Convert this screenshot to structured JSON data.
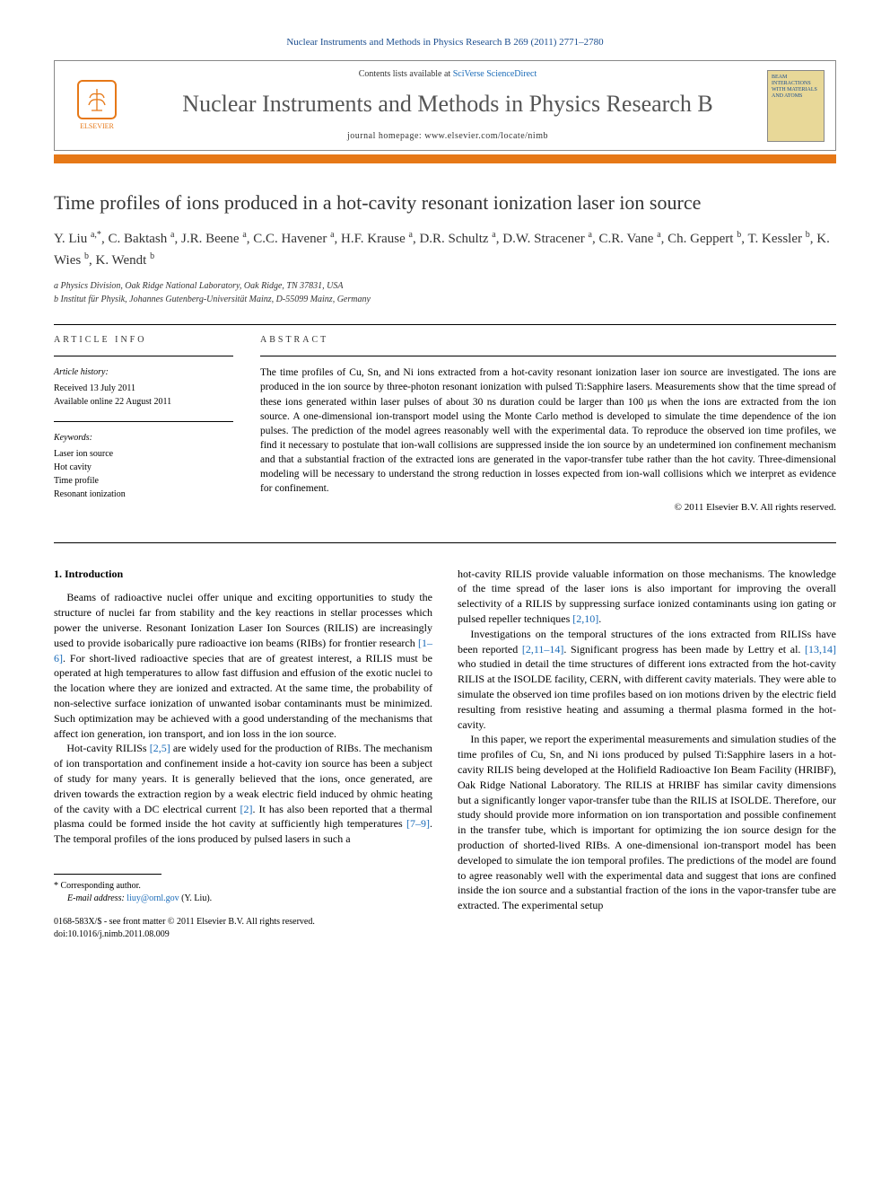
{
  "journal_ref": "Nuclear Instruments and Methods in Physics Research B 269 (2011) 2771–2780",
  "header": {
    "publisher_name": "ELSEVIER",
    "contents_prefix": "Contents lists available at ",
    "contents_link": "SciVerse ScienceDirect",
    "journal_title": "Nuclear Instruments and Methods in Physics Research B",
    "homepage_prefix": "journal homepage: ",
    "homepage_url": "www.elsevier.com/locate/nimb",
    "cover_text": "BEAM INTERACTIONS WITH MATERIALS AND ATOMS"
  },
  "article": {
    "title": "Time profiles of ions produced in a hot-cavity resonant ionization laser ion source",
    "authors_html": "Y. Liu <sup>a,*</sup>, C. Baktash <sup>a</sup>, J.R. Beene <sup>a</sup>, C.C. Havener <sup>a</sup>, H.F. Krause <sup>a</sup>, D.R. Schultz <sup>a</sup>, D.W. Stracener <sup>a</sup>, C.R. Vane <sup>a</sup>, Ch. Geppert <sup>b</sup>, T. Kessler <sup>b</sup>, K. Wies <sup>b</sup>, K. Wendt <sup>b</sup>",
    "affiliations": [
      "a Physics Division, Oak Ridge National Laboratory, Oak Ridge, TN 37831, USA",
      "b Institut für Physik, Johannes Gutenberg-Universität Mainz, D-55099 Mainz, Germany"
    ]
  },
  "info": {
    "heading": "ARTICLE INFO",
    "history_label": "Article history:",
    "received": "Received 13 July 2011",
    "online": "Available online 22 August 2011",
    "keywords_label": "Keywords:",
    "keywords": [
      "Laser ion source",
      "Hot cavity",
      "Time profile",
      "Resonant ionization"
    ]
  },
  "abstract": {
    "heading": "ABSTRACT",
    "text": "The time profiles of Cu, Sn, and Ni ions extracted from a hot-cavity resonant ionization laser ion source are investigated. The ions are produced in the ion source by three-photon resonant ionization with pulsed Ti:Sapphire lasers. Measurements show that the time spread of these ions generated within laser pulses of about 30 ns duration could be larger than 100 μs when the ions are extracted from the ion source. A one-dimensional ion-transport model using the Monte Carlo method is developed to simulate the time dependence of the ion pulses. The prediction of the model agrees reasonably well with the experimental data. To reproduce the observed ion time profiles, we find it necessary to postulate that ion-wall collisions are suppressed inside the ion source by an undetermined ion confinement mechanism and that a substantial fraction of the extracted ions are generated in the vapor-transfer tube rather than the hot cavity. Three-dimensional modeling will be necessary to understand the strong reduction in losses expected from ion-wall collisions which we interpret as evidence for confinement.",
    "copyright": "© 2011 Elsevier B.V. All rights reserved."
  },
  "body": {
    "section1_heading": "1. Introduction",
    "p1": "Beams of radioactive nuclei offer unique and exciting opportunities to study the structure of nuclei far from stability and the key reactions in stellar processes which power the universe. Resonant Ionization Laser Ion Sources (RILIS) are increasingly used to provide isobarically pure radioactive ion beams (RIBs) for frontier research [1–6]. For short-lived radioactive species that are of greatest interest, a RILIS must be operated at high temperatures to allow fast diffusion and effusion of the exotic nuclei to the location where they are ionized and extracted. At the same time, the probability of non-selective surface ionization of unwanted isobar contaminants must be minimized. Such optimization may be achieved with a good understanding of the mechanisms that affect ion generation, ion transport, and ion loss in the ion source.",
    "p2": "Hot-cavity RILISs [2,5] are widely used for the production of RIBs. The mechanism of ion transportation and confinement inside a hot-cavity ion source has been a subject of study for many years. It is generally believed that the ions, once generated, are driven towards the extraction region by a weak electric field induced by ohmic heating of the cavity with a DC electrical current [2]. It has also been reported that a thermal plasma could be formed inside the hot cavity at sufficiently high temperatures [7–9]. The temporal profiles of the ions produced by pulsed lasers in such a",
    "p3": "hot-cavity RILIS provide valuable information on those mechanisms. The knowledge of the time spread of the laser ions is also important for improving the overall selectivity of a RILIS by suppressing surface ionized contaminants using ion gating or pulsed repeller techniques [2,10].",
    "p4": "Investigations on the temporal structures of the ions extracted from RILISs have been reported [2,11–14]. Significant progress has been made by Lettry et al. [13,14] who studied in detail the time structures of different ions extracted from the hot-cavity RILIS at the ISOLDE facility, CERN, with different cavity materials. They were able to simulate the observed ion time profiles based on ion motions driven by the electric field resulting from resistive heating and assuming a thermal plasma formed in the hot-cavity.",
    "p5": "In this paper, we report the experimental measurements and simulation studies of the time profiles of Cu, Sn, and Ni ions produced by pulsed Ti:Sapphire lasers in a hot-cavity RILIS being developed at the Holifield Radioactive Ion Beam Facility (HRIBF), Oak Ridge National Laboratory. The RILIS at HRIBF has similar cavity dimensions but a significantly longer vapor-transfer tube than the RILIS at ISOLDE. Therefore, our study should provide more information on ion transportation and possible confinement in the transfer tube, which is important for optimizing the ion source design for the production of shorted-lived RIBs. A one-dimensional ion-transport model has been developed to simulate the ion temporal profiles. The predictions of the model are found to agree reasonably well with the experimental data and suggest that ions are confined inside the ion source and a substantial fraction of the ions in the vapor-transfer tube are extracted. The experimental setup"
  },
  "footer": {
    "corr_label": "* Corresponding author.",
    "email_label": "E-mail address: ",
    "email": "liuy@ornl.gov",
    "email_suffix": " (Y. Liu).",
    "issn_line": "0168-583X/$ - see front matter © 2011 Elsevier B.V. All rights reserved.",
    "doi_line": "doi:10.1016/j.nimb.2011.08.009"
  }
}
